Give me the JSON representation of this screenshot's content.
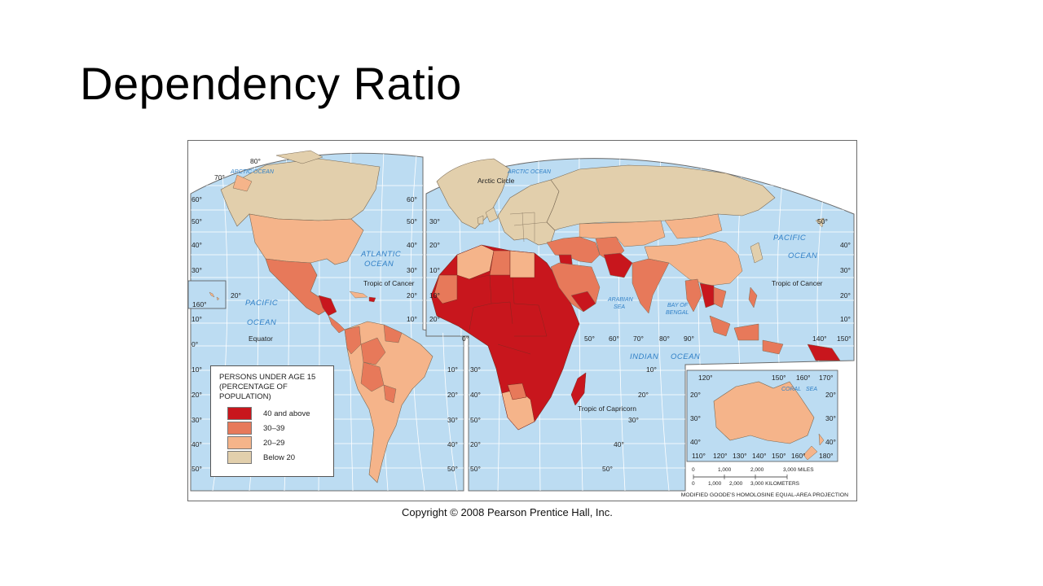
{
  "slide": {
    "title": "Dependency Ratio"
  },
  "map": {
    "oceans": {
      "arctic_left": "ARCTIC OCEAN",
      "arctic_right": "ARCTIC OCEAN",
      "atlantic_1": "ATLANTIC",
      "atlantic_2": "OCEAN",
      "pacific_left_1": "PACIFIC",
      "pacific_left_2": "OCEAN",
      "pacific_right_1": "PACIFIC",
      "pacific_right_2": "OCEAN",
      "arabian_1": "ARABIAN",
      "arabian_2": "SEA",
      "bengal_1": "BAY OF",
      "bengal_2": "BENGAL",
      "indian_1": "INDIAN",
      "indian_2": "OCEAN",
      "coral": "CORAL",
      "coral_sea": "SEA"
    },
    "lines": {
      "arctic_circle": "Arctic Circle",
      "tropic_cancer_left": "Tropic of Cancer",
      "tropic_cancer_right": "Tropic of Cancer",
      "equator": "Equator",
      "tropic_capricorn": "Tropic of Capricorn"
    },
    "degrees_left": [
      "80°",
      "70°",
      "60°",
      "50°",
      "40°",
      "30°",
      "20°",
      "10°",
      "0°",
      "10°",
      "20°",
      "30°",
      "40°",
      "50°"
    ],
    "degrees_mid": [
      "60°",
      "50°",
      "40°",
      "30°",
      "20°",
      "10°",
      "10°",
      "20°",
      "30°",
      "40°",
      "50°"
    ],
    "degrees_right": [
      "50°",
      "40°",
      "30°",
      "20°",
      "10°",
      "10°",
      "20°",
      "30°",
      "40°",
      "50°"
    ],
    "degrees_bottom_mid": [
      "0°",
      "50°",
      "60°",
      "70°",
      "80°",
      "90°"
    ],
    "degrees_pacific": [
      "140°",
      "150°"
    ],
    "degrees_inset_top": [
      "120°",
      "150°",
      "160°",
      "170°"
    ],
    "degrees_inset_bottom": [
      "110°",
      "120°",
      "130°",
      "140°",
      "150°",
      "160°",
      "180°"
    ],
    "degrees_inset_side": [
      "20°",
      "30°",
      "40°",
      "20°",
      "30°",
      "40°"
    ],
    "degrees_misc": [
      "160°",
      "20°",
      "30°",
      "20°",
      "10°",
      "10°",
      "20°",
      "30°",
      "40°",
      "50°"
    ],
    "colors": {
      "ocean": "#bcdcf2",
      "c40": "#c8161d",
      "c30": "#e7795a",
      "c20": "#f5b48a",
      "c_below": "#e2cfac",
      "grid": "#ffffff",
      "border": "#555555"
    }
  },
  "legend": {
    "title_1": "PERSONS UNDER AGE 15",
    "title_2": "(PERCENTAGE OF",
    "title_3": "POPULATION)",
    "items": [
      {
        "label": "40 and above",
        "color": "#c8161d"
      },
      {
        "label": "30–39",
        "color": "#e7795a"
      },
      {
        "label": "20–29",
        "color": "#f5b48a"
      },
      {
        "label": "Below 20",
        "color": "#e2cfac"
      }
    ]
  },
  "scale": {
    "miles": [
      "0",
      "1,000",
      "2,000",
      "3,000 MILES"
    ],
    "km": [
      "0",
      "1,000",
      "2,000",
      "3,000 KILOMETERS"
    ]
  },
  "projection": "MODIFIED GOODE'S HOMOLOSINE EQUAL-AREA PROJECTION",
  "copyright": "Copyright © 2008 Pearson Prentice Hall, Inc."
}
